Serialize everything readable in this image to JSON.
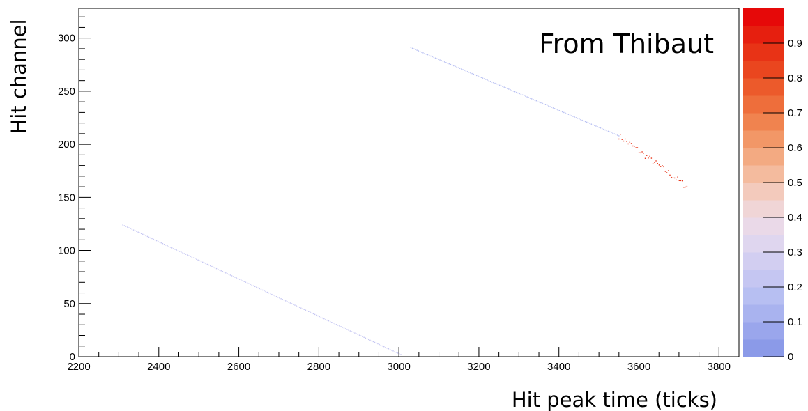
{
  "chart_data": {
    "type": "scatter",
    "title": "",
    "annotation": "From Thibaut",
    "xlabel": "Hit peak time (ticks)",
    "ylabel": "Hit channel",
    "xlim": [
      2200,
      3850
    ],
    "ylim": [
      0,
      328
    ],
    "xticks": [
      2200,
      2400,
      2600,
      2800,
      3000,
      3200,
      3400,
      3600,
      3800
    ],
    "yticks": [
      0,
      50,
      100,
      150,
      200,
      250,
      300
    ],
    "grid": false,
    "colorbar": {
      "range": [
        0,
        1
      ],
      "ticks": [
        0,
        0.1,
        0.2,
        0.3,
        0.4,
        0.5,
        0.6,
        0.7,
        0.8,
        0.9
      ],
      "colors": [
        "#8b9ae8",
        "#9aa6ec",
        "#a9b3ef",
        "#b7bff2",
        "#c5c6f2",
        "#d2cef1",
        "#dfd6ef",
        "#ead9e8",
        "#f0d5d6",
        "#f3cabc",
        "#f4bb9e",
        "#f3aa82",
        "#f29767",
        "#f0834f",
        "#ee6e3b",
        "#ec5a2b",
        "#ea461f",
        "#e83316",
        "#e61f0f",
        "#e60909"
      ]
    },
    "series": [
      {
        "segments": [
          {
            "x": [
              2310,
              3005
            ],
            "y": [
              124,
              2
            ],
            "value": 0.2
          },
          {
            "x": [
              3030,
              3550
            ],
            "y": [
              291,
              208
            ],
            "value": 0.15
          },
          {
            "x": [
              3550,
              3720
            ],
            "y": [
              208,
              160
            ],
            "value": 0.85
          }
        ]
      }
    ]
  }
}
